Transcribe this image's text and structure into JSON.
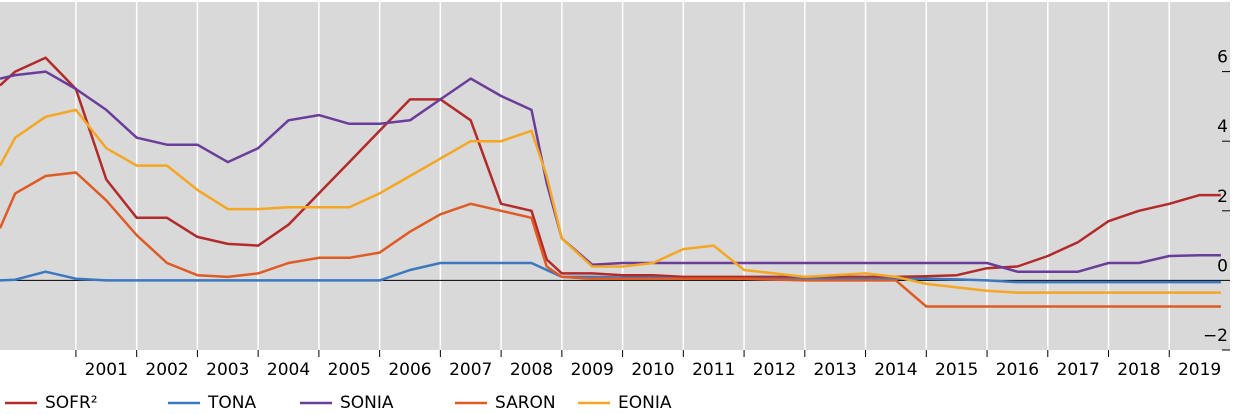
{
  "chart_data": {
    "type": "line",
    "x": [
      1999.75,
      2000,
      2000.5,
      2001,
      2001.5,
      2002,
      2002.5,
      2003,
      2003.5,
      2004,
      2004.5,
      2005,
      2005.5,
      2006,
      2006.5,
      2007,
      2007.5,
      2008,
      2008.5,
      2008.75,
      2009,
      2009.5,
      2010,
      2010.5,
      2011,
      2011.5,
      2012,
      2013,
      2014,
      2014.5,
      2015,
      2015.5,
      2016,
      2016.5,
      2017,
      2017.5,
      2018,
      2018.5,
      2019,
      2019.5,
      2019.85
    ],
    "series": [
      {
        "name": "SOFR²",
        "color": "#b22a2a",
        "values": [
          5.6,
          6.0,
          6.4,
          5.5,
          2.9,
          1.8,
          1.8,
          1.25,
          1.05,
          1.0,
          1.6,
          2.5,
          3.4,
          4.3,
          5.2,
          5.2,
          4.6,
          2.2,
          2.0,
          0.6,
          0.2,
          0.2,
          0.15,
          0.15,
          0.1,
          0.1,
          0.1,
          0.1,
          0.1,
          0.1,
          0.12,
          0.15,
          0.35,
          0.4,
          0.7,
          1.1,
          1.7,
          2.0,
          2.2,
          2.45,
          2.45
        ]
      },
      {
        "name": "TONA",
        "color": "#3a78c0",
        "values": [
          0,
          0.02,
          0.25,
          0.05,
          0,
          0,
          0,
          0,
          0,
          0,
          0,
          0,
          0,
          0,
          0.3,
          0.5,
          0.5,
          0.5,
          0.5,
          0.3,
          0.1,
          0.1,
          0.08,
          0.08,
          0.05,
          0.05,
          0.05,
          0.05,
          0.05,
          0.05,
          0.05,
          0.03,
          0,
          -0.05,
          -0.05,
          -0.05,
          -0.05,
          -0.05,
          -0.05,
          -0.05,
          -0.05
        ]
      },
      {
        "name": "SONIA",
        "color": "#6a3d9a",
        "values": [
          5.8,
          5.9,
          6.0,
          5.5,
          4.9,
          4.1,
          3.9,
          3.9,
          3.4,
          3.8,
          4.6,
          4.75,
          4.5,
          4.5,
          4.6,
          5.2,
          5.8,
          5.3,
          4.9,
          2.8,
          1.2,
          0.45,
          0.5,
          0.5,
          0.5,
          0.5,
          0.5,
          0.5,
          0.5,
          0.5,
          0.5,
          0.5,
          0.5,
          0.25,
          0.25,
          0.25,
          0.5,
          0.5,
          0.7,
          0.72,
          0.72
        ]
      },
      {
        "name": "SARON",
        "color": "#e05a24",
        "values": [
          1.5,
          2.5,
          3.0,
          3.1,
          2.3,
          1.3,
          0.5,
          0.15,
          0.1,
          0.2,
          0.5,
          0.65,
          0.65,
          0.8,
          1.4,
          1.9,
          2.2,
          2.0,
          1.8,
          0.4,
          0.1,
          0.05,
          0.05,
          0.05,
          0.05,
          0.05,
          0.05,
          0.0,
          0.0,
          0.0,
          -0.75,
          -0.75,
          -0.75,
          -0.75,
          -0.75,
          -0.75,
          -0.75,
          -0.75,
          -0.75,
          -0.75,
          -0.75
        ]
      },
      {
        "name": "EONIA",
        "color": "#f5a623",
        "values": [
          3.3,
          4.1,
          4.7,
          4.9,
          3.8,
          3.3,
          3.3,
          2.6,
          2.05,
          2.05,
          2.1,
          2.1,
          2.1,
          2.5,
          3.0,
          3.5,
          4.0,
          4.0,
          4.3,
          3.0,
          1.2,
          0.4,
          0.4,
          0.5,
          0.9,
          1.0,
          0.3,
          0.1,
          0.2,
          0.1,
          -0.1,
          -0.2,
          -0.3,
          -0.35,
          -0.35,
          -0.35,
          -0.35,
          -0.35,
          -0.35,
          -0.35,
          -0.35
        ]
      }
    ],
    "xlim": [
      1999.75,
      2020.0
    ],
    "xticks": [
      2001,
      2002,
      2003,
      2004,
      2005,
      2006,
      2007,
      2008,
      2009,
      2010,
      2011,
      2012,
      2013,
      2014,
      2015,
      2016,
      2017,
      2018,
      2019
    ],
    "ylim": [
      -2,
      8
    ],
    "yticks": [
      {
        "value": -2,
        "label": "−2"
      },
      0,
      2,
      4,
      6
    ],
    "grid": true
  }
}
